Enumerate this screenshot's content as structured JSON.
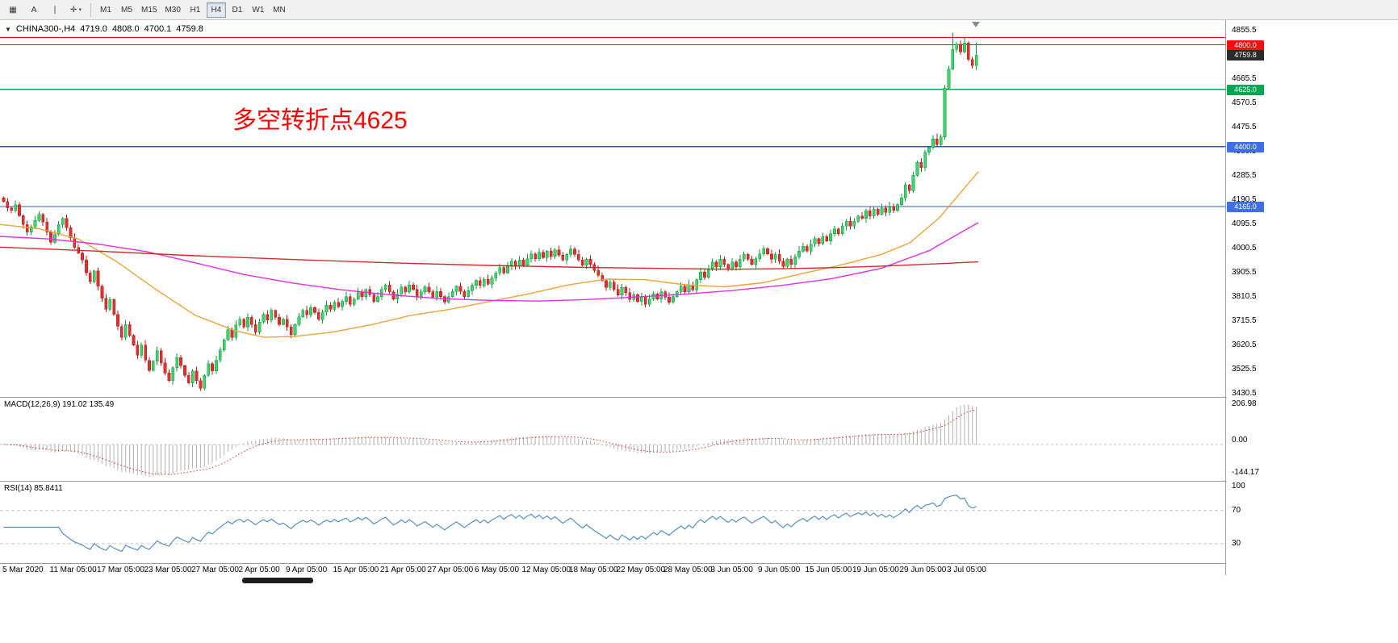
{
  "toolbar": {
    "tools": [
      {
        "name": "chart-bars-tool",
        "glyph": "▦"
      },
      {
        "name": "text-tool",
        "glyph": "A"
      },
      {
        "name": "vline-tool",
        "glyph": "∣"
      },
      {
        "name": "crosshair-tool",
        "glyph": "✛",
        "caret": "▾"
      }
    ],
    "timeframes": [
      "M1",
      "M5",
      "M15",
      "M30",
      "H1",
      "H4",
      "D1",
      "W1",
      "MN"
    ],
    "active_timeframe": "H4"
  },
  "chart": {
    "collapse_icon": "▼",
    "symbol": "CHINA300-,H4",
    "ohlc": {
      "open": "4719.0",
      "high": "4808.0",
      "low": "4700.1",
      "close": "4759.8"
    },
    "annotation": {
      "text": "多空转折点4625",
      "color": "#ff0000"
    },
    "current_price": {
      "value": 4759.8,
      "label": "4759.8",
      "badge_color": "#2b2b2b"
    },
    "levels": [
      {
        "value": 4829,
        "color": "#ff0000",
        "badge": null,
        "badge_color": null
      },
      {
        "value": 4800,
        "color": "#ff0000",
        "badge": "4800.0",
        "badge_color": "#f01010"
      },
      {
        "value": 4625,
        "color": "#00a651",
        "badge": "4625.0",
        "badge_color": "#00a651"
      },
      {
        "value": 4400,
        "color": "#3355e0",
        "badge": "4400.0",
        "badge_color": "#3f6fe0"
      },
      {
        "value": 4165,
        "color": "#3355e0",
        "badge": "4165.0",
        "badge_color": "#3f6fe0"
      }
    ],
    "axis": {
      "ticks": [
        4855.5,
        4760.5,
        4665.5,
        4570.5,
        4475.5,
        4380.5,
        4285.5,
        4190.5,
        4095.5,
        4000.5,
        3905.5,
        3810.5,
        3715.5,
        3620.5,
        3525.5,
        3430.5
      ]
    }
  },
  "macd": {
    "label": "MACD(12,26,9) 191.02 135.49",
    "scale_max": "206.98",
    "scale_zero": "0.00",
    "scale_min": "-144.17",
    "histogram_color": "#b0b0b0",
    "signal_color": "#e03030"
  },
  "rsi": {
    "label": "RSI(14) 85.8411",
    "levels": [
      "100",
      "70",
      "30"
    ],
    "line_color": "#4a86c0"
  },
  "chart_data": {
    "type": "candlestick",
    "title": "CHINA300-,H4 4719.0 4808.0 4700.1 4759.8",
    "symbol": "CHINA300-,H4",
    "timeframe": "H4",
    "ylim": [
      3414,
      4894
    ],
    "last_bar": {
      "open": 4719.0,
      "high": 4808.0,
      "low": 4700.1,
      "close": 4759.8
    },
    "indicators": {
      "macd_value": 191.02,
      "macd_signal": 135.49,
      "rsi_value": 85.8411
    },
    "up_color": "#3ed36b",
    "down_color": "#e0312e",
    "closes": [
      4185,
      4160,
      4150,
      4172,
      4130,
      4095,
      4065,
      4085,
      4110,
      4135,
      4105,
      4065,
      4025,
      4055,
      4095,
      4118,
      4082,
      4042,
      4005,
      3982,
      3955,
      3905,
      3870,
      3912,
      3852,
      3805,
      3762,
      3800,
      3742,
      3695,
      3652,
      3702,
      3660,
      3622,
      3582,
      3622,
      3562,
      3522,
      3558,
      3600,
      3552,
      3512,
      3482,
      3532,
      3572,
      3540,
      3502,
      3472,
      3520,
      3482,
      3452,
      3502,
      3548,
      3520,
      3562,
      3602,
      3642,
      3682,
      3652,
      3700,
      3722,
      3692,
      3730,
      3702,
      3672,
      3712,
      3742,
      3720,
      3758,
      3730,
      3702,
      3722,
      3692,
      3662,
      3702,
      3732,
      3758,
      3740,
      3768,
      3750,
      3722,
      3752,
      3778,
      3762,
      3790,
      3772,
      3792,
      3812,
      3782,
      3802,
      3830,
      3812,
      3840,
      3820,
      3792,
      3812,
      3840,
      3858,
      3830,
      3802,
      3822,
      3850,
      3830,
      3858,
      3840,
      3812,
      3830,
      3850,
      3830,
      3810,
      3832,
      3812,
      3790,
      3812,
      3832,
      3852,
      3832,
      3812,
      3835,
      3855,
      3875,
      3855,
      3880,
      3860,
      3885,
      3905,
      3925,
      3905,
      3930,
      3950,
      3930,
      3955,
      3935,
      3960,
      3980,
      3960,
      3985,
      3965,
      3990,
      3970,
      3995,
      3975,
      3955,
      3978,
      3998,
      3978,
      3955,
      3935,
      3958,
      3938,
      3915,
      3895,
      3875,
      3848,
      3868,
      3840,
      3818,
      3848,
      3828,
      3800,
      3820,
      3792,
      3812,
      3782,
      3802,
      3822,
      3802,
      3830,
      3810,
      3790,
      3812,
      3832,
      3852,
      3830,
      3858,
      3838,
      3878,
      3908,
      3888,
      3918,
      3948,
      3928,
      3958,
      3938,
      3918,
      3948,
      3928,
      3958,
      3978,
      3958,
      3938,
      3960,
      3980,
      4000,
      3980,
      3958,
      3978,
      3950,
      3930,
      3958,
      3938,
      3968,
      3990,
      4010,
      3990,
      4018,
      4040,
      4020,
      4048,
      4030,
      4058,
      4078,
      4058,
      4088,
      4108,
      4088,
      4108,
      4128,
      4118,
      4148,
      4128,
      4155,
      4135,
      4160,
      4142,
      4165,
      4150,
      4172,
      4200,
      4250,
      4228,
      4288,
      4338,
      4318,
      4378,
      4398
    ],
    "tail_ohlc": [
      [
        4398,
        4445,
        4388,
        4430
      ],
      [
        4430,
        4452,
        4398,
        4408
      ],
      [
        4408,
        4448,
        4400,
        4438
      ],
      [
        4438,
        4642,
        4428,
        4630
      ],
      [
        4630,
        4718,
        4622,
        4705
      ],
      [
        4705,
        4848,
        4700,
        4782
      ],
      [
        4782,
        4812,
        4768,
        4802
      ],
      [
        4802,
        4818,
        4760,
        4772
      ],
      [
        4772,
        4830,
        4766,
        4808
      ],
      [
        4808,
        4815,
        4735,
        4742
      ],
      [
        4742,
        4752,
        4706,
        4719
      ],
      [
        4719,
        4808,
        4700.1,
        4759.8
      ]
    ],
    "moving_averages": [
      {
        "name": "sma-fast",
        "color": "#eda33b",
        "points": [
          [
            0,
            4095
          ],
          [
            0.04,
            4078
          ],
          [
            0.08,
            4038
          ],
          [
            0.12,
            3948
          ],
          [
            0.16,
            3838
          ],
          [
            0.2,
            3738
          ],
          [
            0.24,
            3678
          ],
          [
            0.27,
            3652
          ],
          [
            0.3,
            3655
          ],
          [
            0.34,
            3672
          ],
          [
            0.38,
            3702
          ],
          [
            0.42,
            3738
          ],
          [
            0.46,
            3762
          ],
          [
            0.5,
            3792
          ],
          [
            0.54,
            3822
          ],
          [
            0.58,
            3857
          ],
          [
            0.62,
            3880
          ],
          [
            0.66,
            3878
          ],
          [
            0.7,
            3858
          ],
          [
            0.74,
            3850
          ],
          [
            0.78,
            3866
          ],
          [
            0.82,
            3902
          ],
          [
            0.86,
            3936
          ],
          [
            0.9,
            3976
          ],
          [
            0.93,
            4022
          ],
          [
            0.96,
            4122
          ],
          [
            1,
            4302
          ]
        ]
      },
      {
        "name": "sma-mid",
        "color": "#e32ee3",
        "points": [
          [
            0,
            4048
          ],
          [
            0.05,
            4038
          ],
          [
            0.1,
            4018
          ],
          [
            0.15,
            3988
          ],
          [
            0.2,
            3944
          ],
          [
            0.25,
            3898
          ],
          [
            0.3,
            3864
          ],
          [
            0.35,
            3838
          ],
          [
            0.4,
            3818
          ],
          [
            0.45,
            3804
          ],
          [
            0.5,
            3797
          ],
          [
            0.55,
            3794
          ],
          [
            0.6,
            3800
          ],
          [
            0.65,
            3810
          ],
          [
            0.7,
            3821
          ],
          [
            0.75,
            3836
          ],
          [
            0.8,
            3856
          ],
          [
            0.85,
            3882
          ],
          [
            0.9,
            3922
          ],
          [
            0.95,
            3992
          ],
          [
            1,
            4102
          ]
        ]
      },
      {
        "name": "sma-slow",
        "color": "#d42a2a",
        "points": [
          [
            0,
            4006
          ],
          [
            0.1,
            3990
          ],
          [
            0.2,
            3972
          ],
          [
            0.3,
            3957
          ],
          [
            0.4,
            3944
          ],
          [
            0.5,
            3934
          ],
          [
            0.6,
            3926
          ],
          [
            0.7,
            3921
          ],
          [
            0.75,
            3919
          ],
          [
            0.8,
            3921
          ],
          [
            0.85,
            3925
          ],
          [
            0.9,
            3931
          ],
          [
            0.95,
            3939
          ],
          [
            1,
            3948
          ]
        ]
      }
    ],
    "x_labels": [
      "5 Mar 2020",
      "11 Mar 05:00",
      "17 Mar 05:00",
      "23 Mar 05:00",
      "27 Mar 05:00",
      "2 Apr 05:00",
      "9 Apr 05:00",
      "15 Apr 05:00",
      "21 Apr 05:00",
      "27 Apr 05:00",
      "6 May 05:00",
      "12 May 05:00",
      "18 May 05:00",
      "22 May 05:00",
      "28 May 05:00",
      "3 Jun 05:00",
      "9 Jun 05:00",
      "15 Jun 05:00",
      "19 Jun 05:00",
      "29 Jun 05:00",
      "3 Jul 05:00"
    ]
  }
}
